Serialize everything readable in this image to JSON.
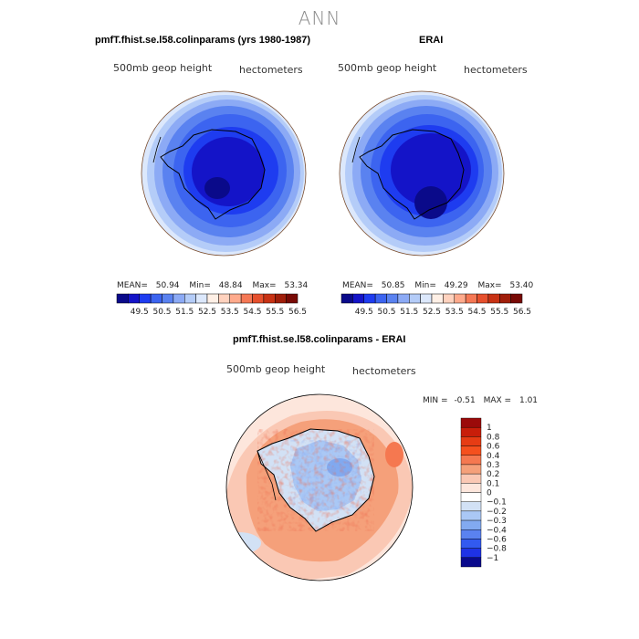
{
  "page": {
    "title": "ANN"
  },
  "panels": [
    {
      "id": "model",
      "title": "pmfT.fhist.se.l58.colinparams (yrs 1980-1987)",
      "subtitle_left": "500mb geop height",
      "subtitle_right": "hectometers",
      "stats": {
        "mean_label": "MEAN=",
        "mean": "50.94",
        "min_label": "Min=",
        "min": "48.84",
        "max_label": "Max=",
        "max": "53.34"
      }
    },
    {
      "id": "obs",
      "title": "ERAI",
      "subtitle_left": "500mb geop height",
      "subtitle_right": "hectometers",
      "stats": {
        "mean_label": "MEAN=",
        "mean": "50.85",
        "min_label": "Min=",
        "min": "49.29",
        "max_label": "Max=",
        "max": "53.40"
      }
    },
    {
      "id": "diff",
      "title": "pmfT.fhist.se.l58.colinparams - ERAI",
      "subtitle_left": "500mb geop height",
      "subtitle_right": "hectometers",
      "stats": {
        "min_label": "MIN =",
        "min": "-0.51",
        "max_label": "MAX =",
        "max": "1.01"
      }
    }
  ],
  "chart_data": [
    {
      "type": "heatmap",
      "projection": "south polar stereographic",
      "title": "pmfT.fhist.se.l58.colinparams (yrs 1980-1987)",
      "variable": "500mb geop height",
      "units": "hectometers",
      "mean": 50.94,
      "min": 48.84,
      "max": 53.34,
      "colorbar_levels": [
        "49.5",
        "50.5",
        "51.5",
        "52.5",
        "53.5",
        "54.5",
        "55.5",
        "56.5"
      ],
      "colorbar_colors": [
        "#0a0a8a",
        "#1414c8",
        "#1e3cf0",
        "#3c64f0",
        "#5a82f0",
        "#8caaf5",
        "#b4ccf8",
        "#dce8fc",
        "#fff0e6",
        "#ffd2be",
        "#ffaa8c",
        "#f57855",
        "#e6502d",
        "#c83214",
        "#a01e0a",
        "#780a05"
      ]
    },
    {
      "type": "heatmap",
      "projection": "south polar stereographic",
      "title": "ERAI",
      "variable": "500mb geop height",
      "units": "hectometers",
      "mean": 50.85,
      "min": 49.29,
      "max": 53.4,
      "colorbar_levels": [
        "49.5",
        "50.5",
        "51.5",
        "52.5",
        "53.5",
        "54.5",
        "55.5",
        "56.5"
      ],
      "colorbar_colors": [
        "#0a0a8a",
        "#1414c8",
        "#1e3cf0",
        "#3c64f0",
        "#5a82f0",
        "#8caaf5",
        "#b4ccf8",
        "#dce8fc",
        "#fff0e6",
        "#ffd2be",
        "#ffaa8c",
        "#f57855",
        "#e6502d",
        "#c83214",
        "#a01e0a",
        "#780a05"
      ]
    },
    {
      "type": "heatmap",
      "projection": "south polar stereographic",
      "title": "pmfT.fhist.se.l58.colinparams - ERAI",
      "variable": "500mb geop height",
      "units": "hectometers",
      "min": -0.51,
      "max": 1.01,
      "colorbar_levels": [
        "1",
        "0.8",
        "0.6",
        "0.4",
        "0.3",
        "0.2",
        "0.1",
        "0",
        "−0.1",
        "−0.2",
        "−0.3",
        "−0.4",
        "−0.6",
        "−0.8",
        "−1"
      ],
      "colorbar_colors": [
        "#9b0a0a",
        "#c81e0a",
        "#e63c14",
        "#f5501e",
        "#f57850",
        "#f5a07a",
        "#fac8b4",
        "#fde6dc",
        "#ffffff",
        "#d2e1f5",
        "#aac8f5",
        "#82aaf0",
        "#5a82f0",
        "#325af0",
        "#1e32e6",
        "#0a0a8c"
      ]
    }
  ]
}
